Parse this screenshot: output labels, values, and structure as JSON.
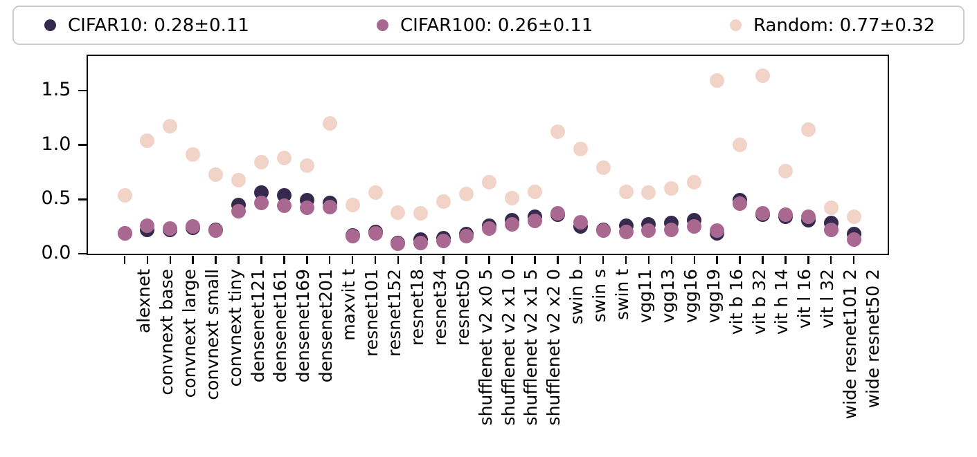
{
  "chart_data": {
    "type": "scatter",
    "title": "",
    "xlabel": "",
    "ylabel": "",
    "grid": false,
    "legend_position": "top",
    "ylim": [
      0,
      1.82
    ],
    "ytick_labels": [
      "0.0",
      "0.5",
      "1.0",
      "1.5"
    ],
    "ytick_values": [
      0.0,
      0.5,
      1.0,
      1.5
    ],
    "categories": [
      "alexnet",
      "convnext base",
      "convnext large",
      "convnext small",
      "convnext tiny",
      "densenet121",
      "densenet161",
      "densenet169",
      "densenet201",
      "maxvit t",
      "resnet101",
      "resnet152",
      "resnet18",
      "resnet34",
      "resnet50",
      "shufflenet v2 x0 5",
      "shufflenet v2 x1 0",
      "shufflenet v2 x1 5",
      "shufflenet v2 x2 0",
      "swin b",
      "swin s",
      "swin t",
      "vgg11",
      "vgg13",
      "vgg16",
      "vgg19",
      "vit b 16",
      "vit b 32",
      "vit h 14",
      "vit l 16",
      "vit l 32",
      "wide resnet101 2",
      "wide resnet50 2"
    ],
    "series": [
      {
        "name": "CIFAR10: 0.28±0.11",
        "color": "#36294e",
        "values": [
          0.19,
          0.22,
          0.22,
          0.24,
          0.22,
          0.45,
          0.56,
          0.54,
          0.49,
          0.47,
          0.17,
          0.2,
          0.1,
          0.13,
          0.14,
          0.18,
          0.26,
          0.31,
          0.34,
          0.36,
          0.25,
          0.22,
          0.26,
          0.27,
          0.28,
          0.31,
          0.19,
          0.49,
          0.36,
          0.34,
          0.31,
          0.28,
          0.18
        ]
      },
      {
        "name": "CIFAR100: 0.26±0.11",
        "color": "#a9688f",
        "values": [
          0.19,
          0.26,
          0.23,
          0.25,
          0.21,
          0.39,
          0.47,
          0.44,
          0.42,
          0.43,
          0.16,
          0.19,
          0.09,
          0.1,
          0.12,
          0.16,
          0.23,
          0.27,
          0.3,
          0.37,
          0.29,
          0.21,
          0.2,
          0.21,
          0.22,
          0.25,
          0.21,
          0.46,
          0.37,
          0.36,
          0.34,
          0.22,
          0.13
        ]
      },
      {
        "name": "Random: 0.77±0.32",
        "color": "#f1d3c8",
        "values": [
          0.54,
          1.04,
          1.17,
          0.91,
          0.73,
          0.68,
          0.84,
          0.88,
          0.81,
          1.2,
          0.45,
          0.56,
          0.38,
          0.37,
          0.48,
          0.55,
          0.66,
          0.51,
          0.57,
          1.12,
          0.96,
          0.79,
          0.57,
          0.56,
          0.6,
          0.66,
          1.59,
          1.0,
          1.64,
          0.76,
          1.14,
          0.42,
          0.34
        ]
      }
    ]
  }
}
